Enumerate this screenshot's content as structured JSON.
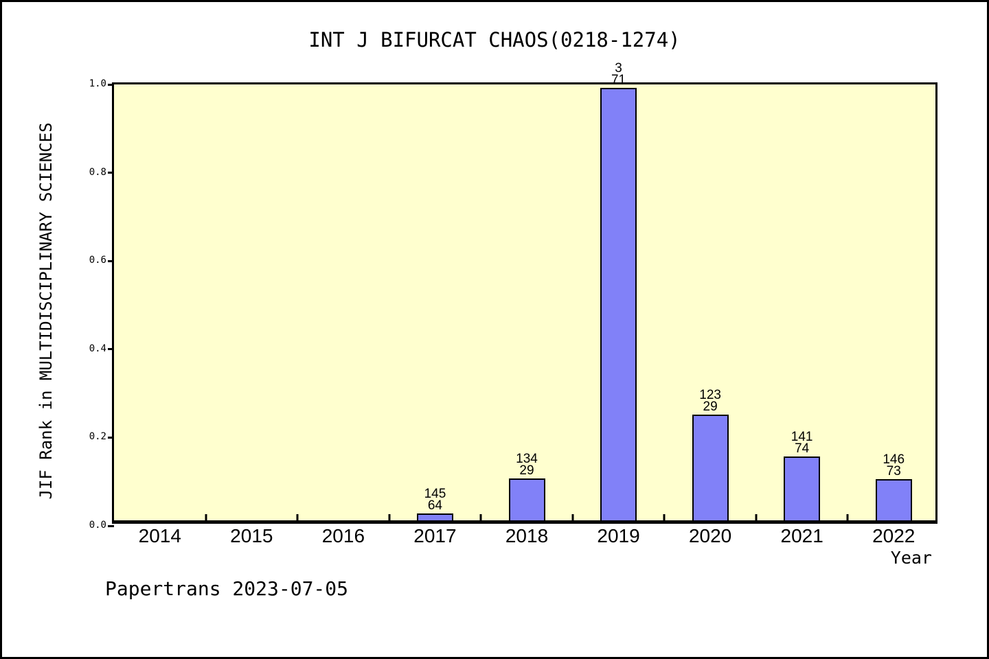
{
  "title": "INT J BIFURCAT CHAOS(0218-1274)",
  "footer": "Papertrans 2023-07-05",
  "colors": {
    "plot_background": "#FFFFCF",
    "bar_fill": "#8181F8",
    "bar_border": "#000000",
    "axis": "#000000",
    "page_background": "#FFFFFF"
  },
  "chart_data": {
    "type": "bar",
    "title": "INT J BIFURCAT CHAOS(0218-1274)",
    "xlabel": "Year",
    "ylabel": "JIF Rank in MULTIDISCIPLINARY SCIENCES",
    "ylim": [
      0.0,
      1.0
    ],
    "yticks": [
      0.0,
      0.2,
      0.4,
      0.6,
      0.8,
      1.0
    ],
    "grid": false,
    "legend": false,
    "categories": [
      "2014",
      "2015",
      "2016",
      "2017",
      "2018",
      "2019",
      "2020",
      "2021",
      "2022"
    ],
    "values": [
      null,
      null,
      null,
      0.015,
      0.095,
      0.98,
      0.24,
      0.145,
      0.093
    ],
    "bar_label_lines": [
      null,
      null,
      null,
      [
        "145",
        "64"
      ],
      [
        "134",
        "29"
      ],
      [
        "3",
        "71"
      ],
      [
        "123",
        "29"
      ],
      [
        "141",
        "74"
      ],
      [
        "146",
        "73"
      ]
    ]
  }
}
